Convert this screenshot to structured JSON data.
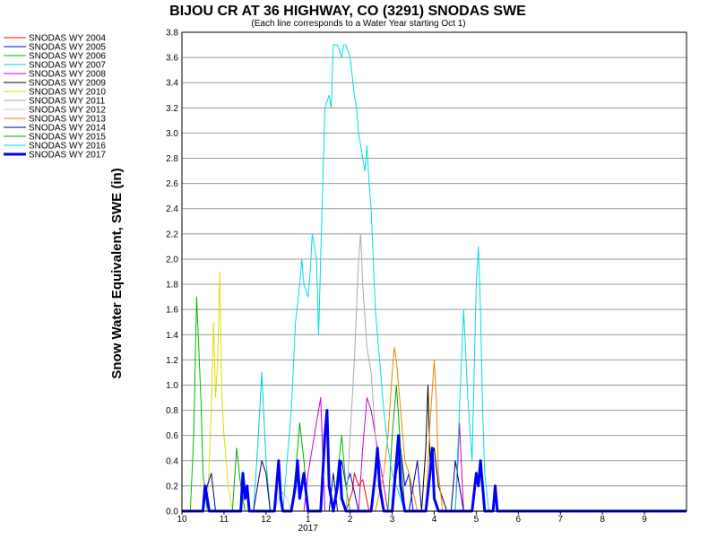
{
  "chart_data": {
    "type": "line",
    "title": "BIJOU CR AT 36 HIGHWAY, CO (3291) SNODAS SWE",
    "subtitle": "(Each line corresponds to a Water Year starting Oct 1)",
    "ylabel": "Snow Water Equivalent, SWE (in)",
    "xlabel": "",
    "ylim": [
      0,
      3.8
    ],
    "xlim": [
      0,
      12
    ],
    "y_ticks": [
      "0.0",
      "0.2",
      "0.4",
      "0.6",
      "0.8",
      "1.0",
      "1.2",
      "1.4",
      "1.6",
      "1.8",
      "2.0",
      "2.2",
      "2.4",
      "2.6",
      "2.8",
      "3.0",
      "3.2",
      "3.4",
      "3.6",
      "3.8"
    ],
    "x_ticks": [
      {
        "pos": 0,
        "label": "10"
      },
      {
        "pos": 1,
        "label": "11"
      },
      {
        "pos": 2,
        "label": "12"
      },
      {
        "pos": 3,
        "label": "1"
      },
      {
        "pos": 4,
        "label": "2"
      },
      {
        "pos": 5,
        "label": "3"
      },
      {
        "pos": 6,
        "label": "4"
      },
      {
        "pos": 7,
        "label": "5"
      },
      {
        "pos": 8,
        "label": "6"
      },
      {
        "pos": 9,
        "label": "7"
      },
      {
        "pos": 10,
        "label": "8"
      },
      {
        "pos": 11,
        "label": "9"
      }
    ],
    "year_label": {
      "pos": 3,
      "label": "2017"
    },
    "grid": true,
    "legend_position": "left",
    "series": [
      {
        "name": "SNODAS WY 2004",
        "color": "#ff0000",
        "width": 1,
        "x": [
          0,
          3.9,
          4.05,
          4.1,
          4.2,
          4.3,
          4.45,
          5.5,
          12
        ],
        "y": [
          0,
          0,
          0.15,
          0.3,
          0.2,
          0.25,
          0,
          0,
          0
        ]
      },
      {
        "name": "SNODAS WY 2005",
        "color": "#0000cc",
        "width": 1,
        "x": [
          0,
          3.6,
          3.7,
          3.8,
          3.9,
          4.0,
          4.2,
          4.3,
          5.0,
          5.1,
          5.2,
          5.3,
          5.4,
          5.5,
          12
        ],
        "y": [
          0,
          0,
          0.2,
          0.4,
          0.2,
          0.3,
          0,
          0,
          0,
          0.3,
          0.5,
          0.2,
          0.3,
          0,
          0
        ]
      },
      {
        "name": "SNODAS WY 2006",
        "color": "#00bb00",
        "width": 1,
        "x": [
          0,
          0.2,
          0.28,
          0.35,
          0.45,
          0.5,
          0.6,
          3.6,
          3.7,
          3.8,
          3.9,
          4.0,
          12
        ],
        "y": [
          0,
          0,
          0.6,
          1.7,
          0.9,
          0.3,
          0,
          0,
          0.3,
          0.6,
          0.2,
          0,
          0
        ]
      },
      {
        "name": "SNODAS WY 2007",
        "color": "#00cccc",
        "width": 1,
        "x": [
          0,
          1.7,
          1.8,
          1.9,
          2.0,
          2.1,
          12
        ],
        "y": [
          0,
          0,
          0.5,
          1.1,
          0.4,
          0,
          0
        ]
      },
      {
        "name": "SNODAS WY 2008",
        "color": "#cc00cc",
        "width": 1,
        "x": [
          0,
          2.9,
          3.0,
          3.1,
          3.2,
          3.3,
          3.4,
          4.2,
          4.3,
          4.4,
          4.5,
          4.6,
          4.7,
          4.8,
          4.9,
          6.5,
          6.55,
          6.6,
          6.7,
          12
        ],
        "y": [
          0,
          0,
          0.3,
          0.5,
          0.7,
          0.9,
          0,
          0,
          0.5,
          0.9,
          0.8,
          0.6,
          0.4,
          0.2,
          0,
          0,
          0.3,
          0.7,
          0,
          0
        ]
      },
      {
        "name": "SNODAS WY 2009",
        "color": "#000000",
        "width": 1,
        "x": [
          0,
          5.7,
          5.8,
          5.85,
          5.9,
          6.0,
          6.1,
          6.3,
          12
        ],
        "y": [
          0,
          0,
          0.5,
          1.0,
          0.4,
          0.5,
          0.2,
          0,
          0
        ]
      },
      {
        "name": "SNODAS WY 2010",
        "color": "#dddd00",
        "width": 1,
        "x": [
          0,
          0.6,
          0.7,
          0.75,
          0.8,
          0.85,
          0.9,
          0.95,
          1.0,
          1.05,
          1.1,
          1.2,
          12
        ],
        "y": [
          0,
          0,
          0.8,
          1.5,
          0.9,
          1.2,
          1.9,
          0.9,
          0.6,
          0.4,
          0.2,
          0,
          0
        ]
      },
      {
        "name": "SNODAS WY 2011",
        "color": "#aaaaaa",
        "width": 1,
        "x": [
          0,
          3.9,
          4.0,
          4.1,
          4.2,
          4.25,
          4.3,
          4.4,
          4.5,
          4.6,
          4.8,
          12
        ],
        "y": [
          0,
          0,
          0.6,
          1.2,
          2.0,
          2.2,
          1.8,
          1.3,
          1.1,
          0.6,
          0,
          0
        ]
      },
      {
        "name": "SNODAS WY 2012",
        "color": "#cccccc",
        "width": 1,
        "x": [
          0,
          2.2,
          2.3,
          2.4,
          2.5,
          2.6,
          12
        ],
        "y": [
          0,
          0,
          0.1,
          0.15,
          0.1,
          0,
          0
        ]
      },
      {
        "name": "SNODAS WY 2013",
        "color": "#ee8800",
        "width": 1,
        "x": [
          0,
          4.6,
          4.8,
          4.9,
          5.0,
          5.05,
          5.1,
          5.2,
          5.3,
          5.4,
          5.6,
          5.8,
          5.9,
          6.0,
          6.05,
          6.1,
          6.2,
          12
        ],
        "y": [
          0,
          0,
          0.3,
          0.6,
          1.1,
          1.3,
          1.2,
          0.8,
          0.4,
          0.3,
          0,
          0,
          0.7,
          1.2,
          0.9,
          0.3,
          0,
          0
        ]
      },
      {
        "name": "SNODAS WY 2014",
        "color": "#000088",
        "width": 1,
        "x": [
          0,
          0.5,
          0.6,
          0.7,
          0.8,
          1.7,
          1.8,
          1.9,
          2.0,
          2.1,
          3.5,
          3.6,
          3.7,
          5.4,
          5.5,
          5.6,
          5.7,
          6.4,
          6.5,
          6.6,
          6.7,
          12
        ],
        "y": [
          0,
          0,
          0.2,
          0.3,
          0,
          0,
          0.2,
          0.4,
          0.3,
          0,
          0,
          0.3,
          0,
          0,
          0.2,
          0.4,
          0,
          0,
          0.4,
          0.2,
          0,
          0
        ]
      },
      {
        "name": "SNODAS WY 2015",
        "color": "#00aa00",
        "width": 1,
        "x": [
          0,
          1.2,
          1.3,
          1.4,
          1.5,
          2.6,
          2.7,
          2.8,
          2.9,
          3.0,
          4.9,
          5.0,
          5.1,
          5.2,
          5.3,
          12
        ],
        "y": [
          0,
          0,
          0.5,
          0.2,
          0,
          0,
          0.3,
          0.7,
          0.4,
          0,
          0,
          0.6,
          1.0,
          0.5,
          0,
          0
        ]
      },
      {
        "name": "SNODAS WY 2016",
        "color": "#00dddd",
        "width": 1,
        "x": [
          0,
          2.4,
          2.6,
          2.7,
          2.8,
          2.85,
          2.9,
          3.0,
          3.05,
          3.1,
          3.15,
          3.2,
          3.25,
          3.3,
          3.4,
          3.5,
          3.55,
          3.6,
          3.7,
          3.8,
          3.85,
          3.9,
          4.0,
          4.1,
          4.15,
          4.2,
          4.3,
          4.35,
          4.4,
          4.45,
          4.5,
          4.6,
          4.7,
          4.8,
          4.9,
          5.0,
          5.1,
          5.3,
          6.5,
          6.6,
          6.7,
          6.8,
          6.9,
          7.0,
          7.05,
          7.1,
          7.15,
          7.2,
          7.3,
          12
        ],
        "y": [
          0,
          0,
          0.8,
          1.5,
          1.8,
          2.0,
          1.8,
          1.7,
          1.9,
          2.2,
          2.1,
          2.0,
          1.4,
          2.0,
          3.2,
          3.3,
          3.2,
          3.7,
          3.7,
          3.6,
          3.7,
          3.7,
          3.6,
          3.3,
          3.2,
          3.0,
          2.8,
          2.7,
          2.9,
          2.6,
          2.4,
          1.6,
          1.2,
          0.8,
          0.5,
          0.3,
          0.2,
          0,
          0,
          0.8,
          1.6,
          0.9,
          0.4,
          1.8,
          2.1,
          1.6,
          0.8,
          0.3,
          0,
          0
        ]
      },
      {
        "name": "SNODAS WY 2017",
        "color": "#0000ff",
        "width": 3,
        "x": [
          0,
          0.5,
          0.55,
          0.6,
          0.65,
          1.4,
          1.45,
          1.5,
          1.55,
          1.6,
          2.2,
          2.25,
          2.3,
          2.35,
          2.4,
          2.6,
          2.7,
          2.75,
          2.8,
          2.9,
          3.0,
          3.3,
          3.4,
          3.45,
          3.5,
          3.6,
          3.7,
          3.75,
          3.8,
          3.9,
          4.5,
          4.6,
          4.65,
          4.7,
          4.8,
          5.0,
          5.1,
          5.15,
          5.2,
          5.3,
          5.8,
          5.9,
          5.95,
          6.0,
          6.1,
          6.9,
          7.0,
          7.05,
          7.1,
          7.2,
          7.4,
          7.45,
          7.5,
          12
        ],
        "y": [
          0,
          0,
          0.2,
          0.1,
          0,
          0,
          0.3,
          0.1,
          0.2,
          0,
          0,
          0.2,
          0.4,
          0.1,
          0,
          0,
          0.2,
          0.4,
          0.1,
          0.3,
          0,
          0,
          0.6,
          0.8,
          0.2,
          0,
          0.2,
          0.4,
          0.1,
          0,
          0,
          0.3,
          0.5,
          0.2,
          0,
          0,
          0.4,
          0.6,
          0.2,
          0,
          0,
          0.3,
          0.5,
          0.1,
          0,
          0,
          0.3,
          0.2,
          0.4,
          0,
          0,
          0.2,
          0,
          0
        ]
      }
    ]
  }
}
